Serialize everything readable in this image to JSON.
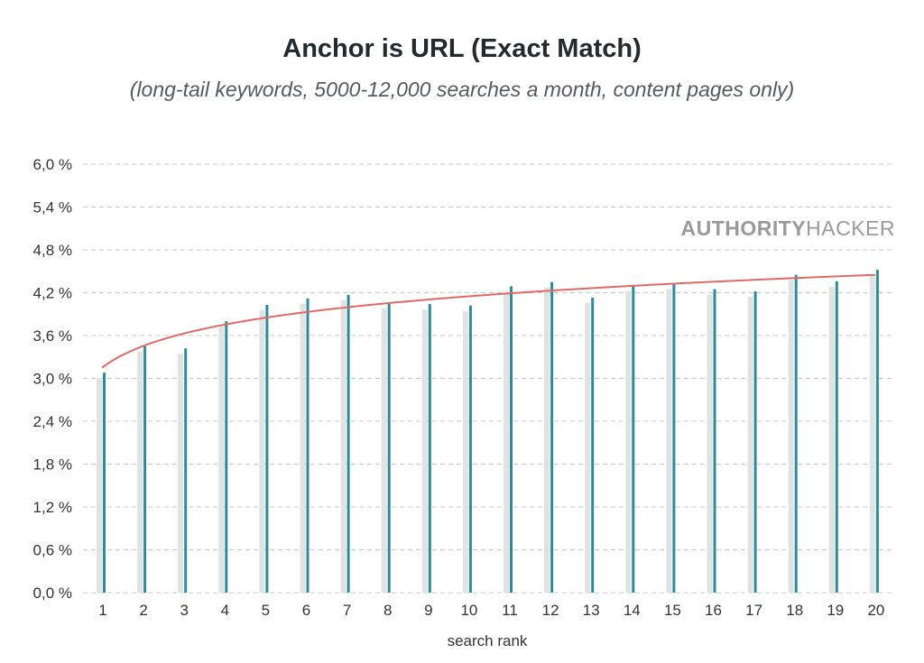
{
  "chart_data": {
    "type": "bar",
    "title": "Anchor is URL (Exact Match)",
    "subtitle": "(long-tail keywords, 5000-12,000 searches a month, content pages only)",
    "xlabel": "search rank",
    "ylabel": "",
    "categories": [
      "1",
      "2",
      "3",
      "4",
      "5",
      "6",
      "7",
      "8",
      "9",
      "10",
      "11",
      "12",
      "13",
      "14",
      "15",
      "16",
      "17",
      "18",
      "19",
      "20"
    ],
    "series": [
      {
        "values": [
          3.08,
          3.45,
          3.42,
          3.8,
          4.03,
          4.12,
          4.17,
          4.06,
          4.04,
          4.02,
          4.29,
          4.35,
          4.13,
          4.3,
          4.33,
          4.25,
          4.22,
          4.45,
          4.36,
          4.52
        ]
      }
    ],
    "trend": {
      "type": "logarithmic",
      "start": 3.15,
      "end": 4.45
    },
    "ylim": [
      0,
      6.0
    ],
    "yticks": [
      "0,0 %",
      "0,6 %",
      "1,2 %",
      "1,8 %",
      "2,4 %",
      "3,0 %",
      "3,6 %",
      "4,2 %",
      "4,8 %",
      "5,4 %",
      "6,0 %"
    ],
    "grid": true,
    "colors": {
      "bar": "#2b8c9b",
      "bar_shadow": "#e2e2e2",
      "trend": "#e06a66",
      "grid": "#c8c8c8"
    }
  },
  "watermark": {
    "bold": "AUTHORITY",
    "regular": "HACKER"
  }
}
